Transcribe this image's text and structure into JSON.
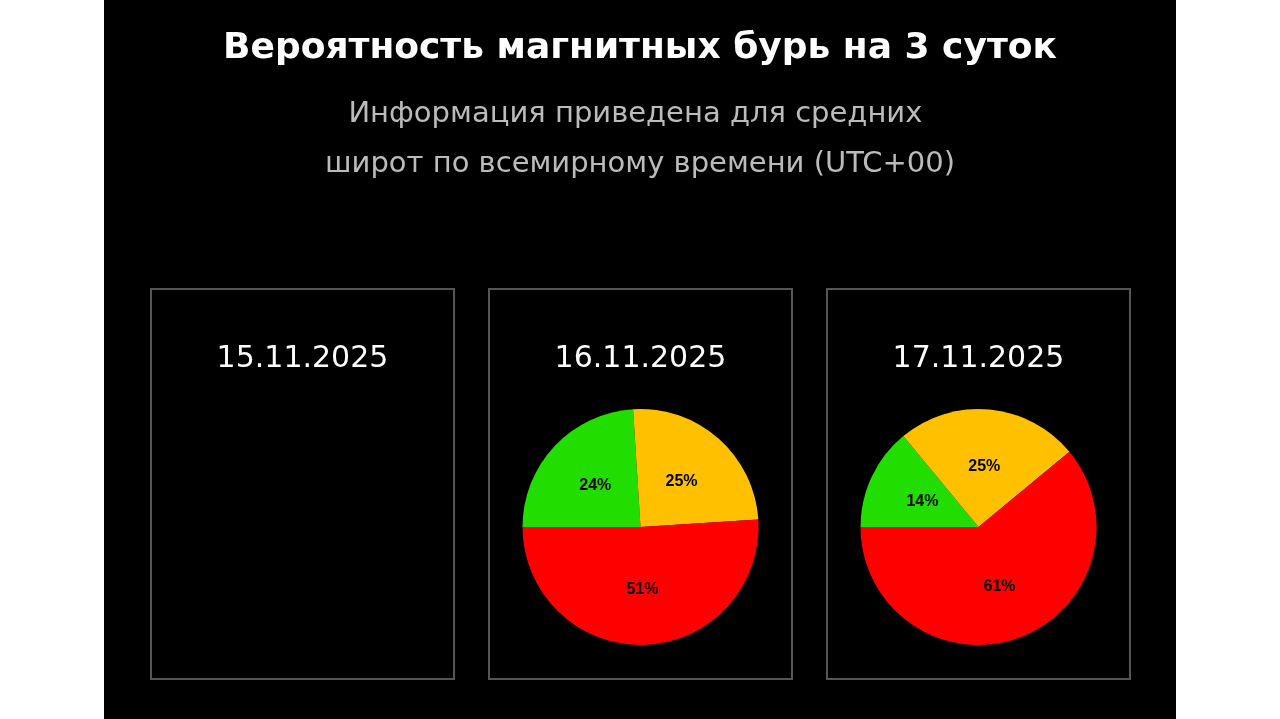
{
  "chart_data": [
    {
      "type": "other",
      "title": "Вероятность магнитных бурь на 3 суток",
      "subtitle": "Информация приведена для средних широт по всемирному времени (UTC+00)"
    },
    {
      "type": "other",
      "title": "15.11.2025"
    },
    {
      "type": "pie",
      "title": "16.11.2025",
      "categories": [
        null,
        null,
        null
      ],
      "values": [
        24,
        25,
        51
      ],
      "value_labels": [
        "24%",
        "25%",
        "51%"
      ],
      "colors": [
        "#22dd00",
        "#ffc000",
        "#ff0000"
      ]
    },
    {
      "type": "pie",
      "title": "17.11.2025",
      "categories": [
        null,
        null,
        null
      ],
      "values": [
        14,
        25,
        61
      ],
      "value_labels": [
        "14%",
        "25%",
        "61%"
      ],
      "colors": [
        "#22dd00",
        "#ffc000",
        "#ff0000"
      ]
    }
  ]
}
